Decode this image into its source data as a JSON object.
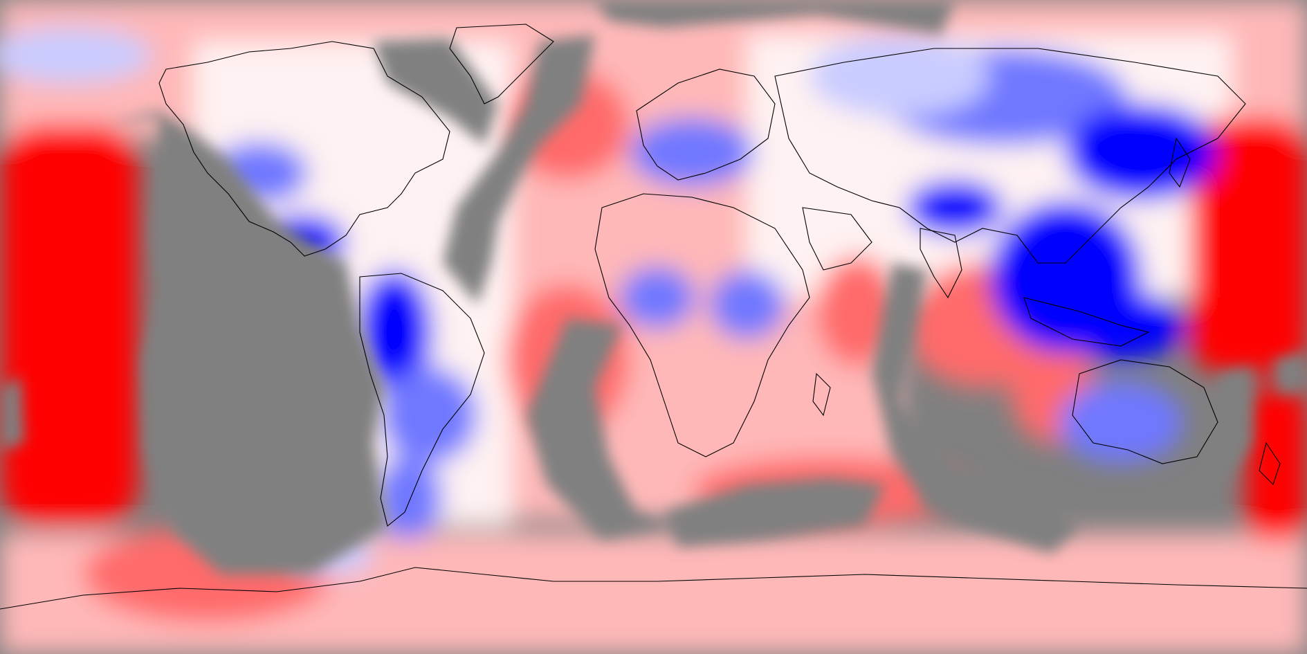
{
  "map": {
    "projection": "equirectangular",
    "type": "global-anomaly-field",
    "colors": {
      "no_data": "#808080",
      "strong_positive": "#ff0000",
      "positive": "#ff6a6a",
      "weak_positive": "#ffb8b8",
      "neutral": "#fff2f2",
      "weak_negative": "#c9ccff",
      "negative": "#6f78ff",
      "strong_negative": "#0000ff",
      "coastline": "#000000"
    },
    "grid": false,
    "legend": "none"
  }
}
